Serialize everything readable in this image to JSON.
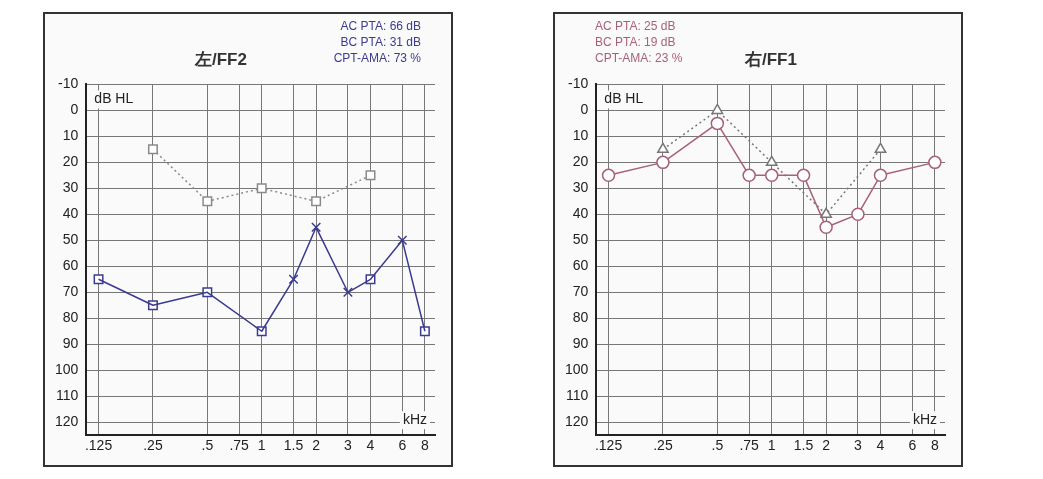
{
  "chart_data": [
    {
      "type": "line",
      "title": "左/FF2",
      "annotations": [
        "AC PTA: 66 dB",
        "BC PTA: 31 dB",
        "CPT-AMA: 73 %"
      ],
      "ylabel": "dB HL",
      "xlabel": "kHz",
      "log": "x",
      "grid": true,
      "legend": false,
      "xlim": [
        0.107,
        9.1
      ],
      "xticks": [
        {
          "value": 0.125,
          "label": ".125"
        },
        {
          "value": 0.25,
          "label": ".25"
        },
        {
          "value": 0.5,
          "label": ".5"
        },
        {
          "value": 0.75,
          "label": ".75"
        },
        1,
        1.5,
        2,
        3,
        4,
        6,
        8
      ],
      "ylim": [
        125,
        -10
      ],
      "yticks": [
        -10,
        0,
        10,
        20,
        30,
        40,
        50,
        60,
        70,
        80,
        90,
        100,
        110,
        120
      ],
      "series": [
        {
          "type": "line",
          "color": "#3b3b8f",
          "marker": "none",
          "line_style": "solid",
          "x": [
            0.125,
            0.25,
            0.5,
            1,
            1.5,
            2,
            3,
            4,
            6,
            8
          ],
          "values": [
            65,
            75,
            70,
            85,
            65,
            45,
            70,
            65,
            50,
            85
          ]
        },
        {
          "type": "scatter",
          "color": "#3b3b8f",
          "marker": "square",
          "x": [
            0.125,
            0.25,
            0.5,
            1,
            4,
            8
          ],
          "values": [
            65,
            75,
            70,
            85,
            65,
            85
          ]
        },
        {
          "type": "scatter",
          "color": "#3b3b8f",
          "marker": "cross",
          "x": [
            1.5,
            2,
            3,
            6
          ],
          "values": [
            65,
            45,
            70,
            50
          ]
        },
        {
          "type": "line",
          "color": "#8a8a8a",
          "marker": "square",
          "line_style": "dotted",
          "x": [
            0.25,
            0.5,
            1,
            2,
            4
          ],
          "values": [
            15,
            35,
            30,
            35,
            25
          ]
        }
      ]
    },
    {
      "type": "line",
      "title": "右/FF1",
      "annotations": [
        "AC PTA: 25 dB",
        "BC PTA: 19 dB",
        "CPT-AMA: 23 %"
      ],
      "ylabel": "dB HL",
      "xlabel": "kHz",
      "log": "x",
      "grid": true,
      "legend": false,
      "xlim": [
        0.107,
        9.1
      ],
      "xticks": [
        {
          "value": 0.125,
          "label": ".125"
        },
        {
          "value": 0.25,
          "label": ".25"
        },
        {
          "value": 0.5,
          "label": ".5"
        },
        {
          "value": 0.75,
          "label": ".75"
        },
        1,
        1.5,
        2,
        3,
        4,
        6,
        8
      ],
      "ylim": [
        125,
        -10
      ],
      "yticks": [
        -10,
        0,
        10,
        20,
        30,
        40,
        50,
        60,
        70,
        80,
        90,
        100,
        110,
        120
      ],
      "series": [
        {
          "type": "line",
          "color": "#a8607a",
          "marker": "circle",
          "line_style": "solid",
          "x": [
            0.125,
            0.25,
            0.5,
            0.75,
            1,
            1.5,
            2,
            3,
            4,
            8
          ],
          "values": [
            25,
            20,
            5,
            25,
            25,
            25,
            45,
            40,
            25,
            20
          ]
        },
        {
          "type": "line",
          "color": "#777777",
          "marker": "triangle",
          "line_style": "dotted",
          "x": [
            0.25,
            0.5,
            1,
            2,
            4
          ],
          "values": [
            15,
            0,
            20,
            40,
            15
          ]
        }
      ]
    }
  ]
}
